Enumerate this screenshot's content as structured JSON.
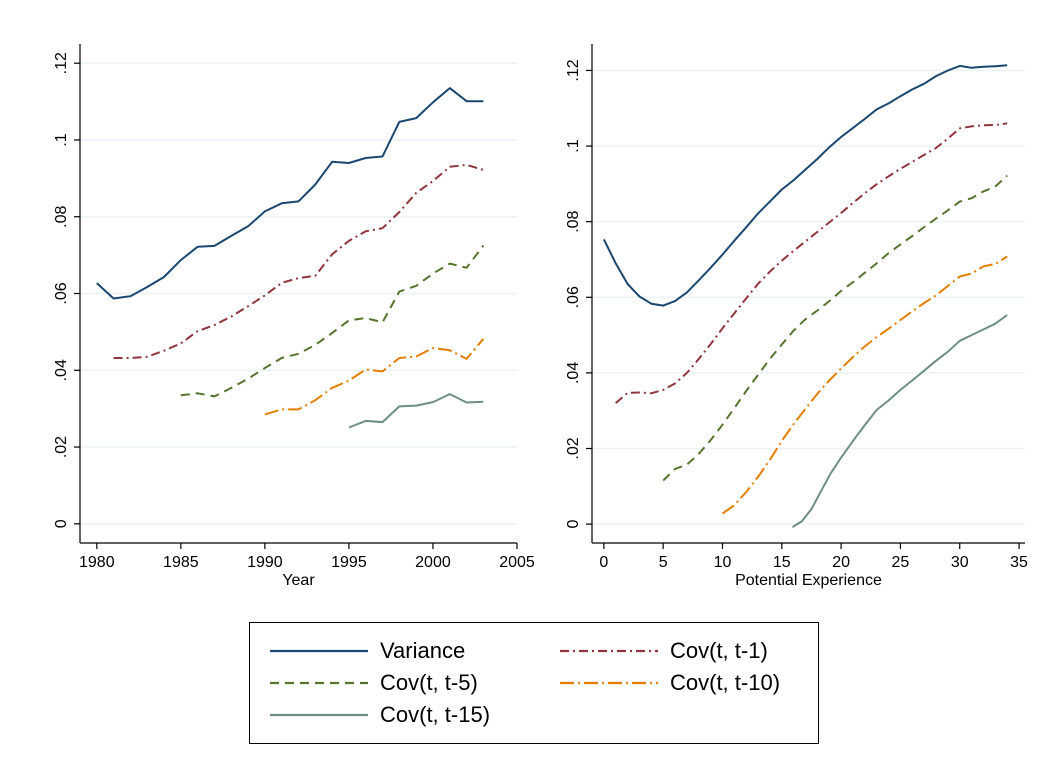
{
  "chart_data": [
    {
      "type": "line",
      "xlabel": "Year",
      "ylabel": "",
      "xlim": [
        1979,
        2005
      ],
      "ylim": [
        -0.005,
        0.125
      ],
      "xticks": [
        1980,
        1985,
        1990,
        1995,
        2000,
        2005
      ],
      "xtick_labels": [
        "1980",
        "1985",
        "1990",
        "1995",
        "2000",
        "2005"
      ],
      "yticks": [
        0,
        0.02,
        0.04,
        0.06,
        0.08,
        0.1,
        0.12
      ],
      "ytick_labels": [
        "0",
        ".02",
        ".04",
        ".06",
        ".08",
        ".1",
        ".12"
      ],
      "grid": "horizontal",
      "series": [
        {
          "name": "Variance",
          "x": [
            1980,
            1981,
            1982,
            1983,
            1984,
            1985,
            1986,
            1987,
            1988,
            1989,
            1990,
            1991,
            1992,
            1993,
            1994,
            1995,
            1996,
            1997,
            1998,
            1999,
            2000,
            2001,
            2002,
            2003
          ],
          "y": [
            0.0627,
            0.0587,
            0.0593,
            0.0617,
            0.0643,
            0.0687,
            0.0722,
            0.0724,
            0.075,
            0.0775,
            0.0814,
            0.0835,
            0.084,
            0.0884,
            0.0943,
            0.094,
            0.0953,
            0.0957,
            0.1047,
            0.1057,
            0.1098,
            0.1135,
            0.1101,
            0.1101
          ]
        },
        {
          "name": "Cov(t, t-1)",
          "x": [
            1981,
            1982,
            1983,
            1984,
            1985,
            1986,
            1987,
            1988,
            1989,
            1990,
            1991,
            1992,
            1993,
            1994,
            1995,
            1996,
            1997,
            1998,
            1999,
            2000,
            2001,
            2002,
            2003
          ],
          "y": [
            0.0432,
            0.0432,
            0.0435,
            0.0451,
            0.047,
            0.0502,
            0.0518,
            0.054,
            0.0567,
            0.0595,
            0.0628,
            0.064,
            0.0646,
            0.0702,
            0.0737,
            0.0762,
            0.077,
            0.0812,
            0.0862,
            0.0893,
            0.093,
            0.0935,
            0.0922
          ]
        },
        {
          "name": "Cov(t, t-5)",
          "x": [
            1985,
            1986,
            1987,
            1988,
            1989,
            1990,
            1991,
            1992,
            1993,
            1994,
            1995,
            1996,
            1997,
            1998,
            1999,
            2000,
            2001,
            2002,
            2003
          ],
          "y": [
            0.0335,
            0.034,
            0.0332,
            0.0354,
            0.0378,
            0.0406,
            0.0432,
            0.0443,
            0.0466,
            0.0497,
            0.053,
            0.0536,
            0.0525,
            0.0605,
            0.062,
            0.0652,
            0.0678,
            0.0667,
            0.0725
          ]
        },
        {
          "name": "Cov(t, t-10)",
          "x": [
            1990,
            1991,
            1992,
            1993,
            1994,
            1995,
            1996,
            1997,
            1998,
            1999,
            2000,
            2001,
            2002,
            2003
          ],
          "y": [
            0.0285,
            0.0298,
            0.0298,
            0.0322,
            0.0354,
            0.0373,
            0.0402,
            0.0397,
            0.0432,
            0.0436,
            0.0458,
            0.0452,
            0.043,
            0.0482
          ]
        },
        {
          "name": "Cov(t, t-15)",
          "x": [
            1995,
            1996,
            1997,
            1998,
            1999,
            2000,
            2001,
            2002,
            2003
          ],
          "y": [
            0.0251,
            0.0268,
            0.0265,
            0.0306,
            0.0308,
            0.0317,
            0.0338,
            0.0316,
            0.0318
          ]
        }
      ]
    },
    {
      "type": "line",
      "xlabel": "Potential Experience",
      "ylabel": "",
      "xlim": [
        -1,
        35.5
      ],
      "ylim": [
        -0.005,
        0.127
      ],
      "xticks": [
        0,
        5,
        10,
        15,
        20,
        25,
        30,
        35
      ],
      "xtick_labels": [
        "0",
        "5",
        "10",
        "15",
        "20",
        "25",
        "30",
        "35"
      ],
      "yticks": [
        0,
        0.02,
        0.04,
        0.06,
        0.08,
        0.1,
        0.12
      ],
      "ytick_labels": [
        "0",
        ".02",
        ".04",
        ".06",
        ".08",
        ".1",
        ".12"
      ],
      "grid": "horizontal",
      "series": [
        {
          "name": "Variance",
          "x": [
            0,
            1,
            2,
            3,
            4,
            5,
            6,
            7,
            8,
            9,
            10,
            11,
            12,
            13,
            14,
            15,
            16,
            17,
            18,
            19,
            20,
            21,
            22,
            23,
            24,
            25,
            26,
            27,
            28,
            29,
            30,
            31,
            32,
            33,
            34
          ],
          "y": [
            0.0753,
            0.069,
            0.0635,
            0.0602,
            0.0583,
            0.0578,
            0.059,
            0.0613,
            0.0645,
            0.0678,
            0.0713,
            0.075,
            0.0785,
            0.0822,
            0.0853,
            0.0885,
            0.091,
            0.0938,
            0.0966,
            0.0997,
            0.1024,
            0.1048,
            0.1072,
            0.1097,
            0.1113,
            0.1132,
            0.115,
            0.1165,
            0.1185,
            0.12,
            0.1212,
            0.1207,
            0.121,
            0.1211,
            0.1214
          ]
        },
        {
          "name": "Cov(t, t-1)",
          "x": [
            1,
            2,
            3,
            4,
            5,
            6,
            7,
            8,
            9,
            10,
            11,
            12,
            13,
            14,
            15,
            16,
            17,
            18,
            19,
            20,
            21,
            22,
            23,
            24,
            25,
            26,
            27,
            28,
            29,
            30,
            31,
            32,
            33,
            34
          ],
          "y": [
            0.032,
            0.0347,
            0.0348,
            0.0346,
            0.0355,
            0.0372,
            0.04,
            0.0437,
            0.0476,
            0.0518,
            0.0558,
            0.0597,
            0.0636,
            0.0668,
            0.0697,
            0.0723,
            0.0748,
            0.0773,
            0.0798,
            0.0823,
            0.085,
            0.0875,
            0.0899,
            0.092,
            0.094,
            0.0958,
            0.0977,
            0.0995,
            0.102,
            0.1047,
            0.1052,
            0.1055,
            0.1056,
            0.106
          ]
        },
        {
          "name": "Cov(t, t-5)",
          "x": [
            5,
            6,
            7,
            8,
            9,
            10,
            11,
            12,
            13,
            14,
            15,
            16,
            17,
            18,
            19,
            20,
            21,
            22,
            23,
            24,
            25,
            26,
            27,
            28,
            29,
            30,
            31,
            32,
            33,
            34
          ],
          "y": [
            0.0115,
            0.0146,
            0.0157,
            0.0186,
            0.0222,
            0.0263,
            0.0307,
            0.0352,
            0.0395,
            0.0437,
            0.0475,
            0.0512,
            0.0542,
            0.0565,
            0.059,
            0.0617,
            0.064,
            0.0665,
            0.069,
            0.0717,
            0.074,
            0.0762,
            0.0786,
            0.0808,
            0.083,
            0.0853,
            0.0862,
            0.088,
            0.0893,
            0.0922
          ]
        },
        {
          "name": "Cov(t, t-10)",
          "x": [
            10,
            11,
            12,
            13,
            14,
            15,
            16,
            17,
            18,
            19,
            20,
            21,
            22,
            23,
            24,
            25,
            26,
            27,
            28,
            29,
            30,
            31,
            32,
            33,
            34
          ],
          "y": [
            0.0028,
            0.005,
            0.0085,
            0.0125,
            0.017,
            0.022,
            0.0265,
            0.0305,
            0.0345,
            0.038,
            0.0412,
            0.0442,
            0.047,
            0.0495,
            0.0517,
            0.054,
            0.0563,
            0.0585,
            0.0605,
            0.063,
            0.0655,
            0.0663,
            0.0682,
            0.0688,
            0.0708
          ]
        },
        {
          "name": "Cov(t, t-15)",
          "x": [
            15.9,
            16.7,
            17.5,
            18.3,
            19.1,
            20,
            21,
            22,
            23,
            24,
            25,
            26,
            27,
            28,
            29,
            30,
            31,
            32,
            33,
            34
          ],
          "y": [
            -0.0008,
            0.0008,
            0.004,
            0.0087,
            0.0133,
            0.0176,
            0.022,
            0.0262,
            0.0302,
            0.0327,
            0.0355,
            0.038,
            0.0406,
            0.0432,
            0.0456,
            0.0485,
            0.05,
            0.0515,
            0.053,
            0.0553
          ]
        }
      ]
    }
  ],
  "legend": {
    "placement": "bottom",
    "entries": [
      {
        "label": "Variance",
        "color": "#1a476f",
        "dash": "solid"
      },
      {
        "label": "Cov(t, t-1)",
        "color": "#90353b",
        "dash": "dash-dot"
      },
      {
        "label": "Cov(t, t-5)",
        "color": "#55752f",
        "dash": "dash"
      },
      {
        "label": "Cov(t, t-10)",
        "color": "#e37e00",
        "dash": "long-dash-dot"
      },
      {
        "label": "Cov(t, t-15)",
        "color": "#6e8e84",
        "dash": "solid"
      }
    ]
  }
}
